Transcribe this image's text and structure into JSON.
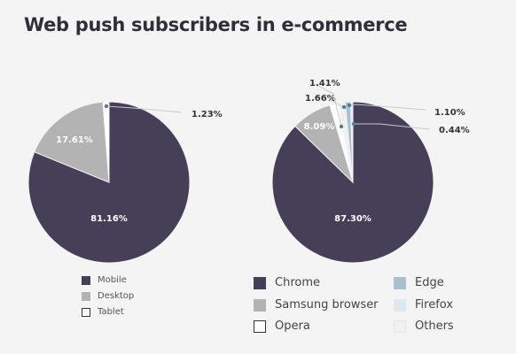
{
  "title": "Web push subscribers in e-commerce",
  "chart_data": [
    {
      "type": "pie",
      "slices": [
        {
          "name": "Mobile",
          "value": 81.16,
          "label": "81.16%",
          "color": "#453f57",
          "label_color": "#ffffff"
        },
        {
          "name": "Desktop",
          "value": 17.61,
          "label": "17.61%",
          "color": "#b3b3b3",
          "label_color": "#ffffff"
        },
        {
          "name": "Tablet",
          "value": 1.23,
          "label": "1.23%",
          "color": "#ffffff",
          "label_color": "#333333"
        }
      ],
      "legend": [
        "Mobile",
        "Desktop",
        "Tablet"
      ]
    },
    {
      "type": "pie",
      "slices": [
        {
          "name": "Chrome",
          "value": 87.3,
          "label": "87.30%",
          "color": "#453f57",
          "label_color": "#ffffff"
        },
        {
          "name": "Samsung browser",
          "value": 8.09,
          "label": "8.09%",
          "color": "#b3b3b3",
          "label_color": "#ffffff"
        },
        {
          "name": "Opera",
          "value": 1.66,
          "label": "1.66%",
          "color": "#ffffff",
          "label_color": "#333333"
        },
        {
          "name": "Others",
          "value": 1.41,
          "label": "1.41%",
          "color": "#f1f1f1",
          "label_color": "#333333"
        },
        {
          "name": "Edge",
          "value": 1.1,
          "label": "1.10%",
          "color": "#a9c0d1",
          "label_color": "#333333"
        },
        {
          "name": "Firefox",
          "value": 0.44,
          "label": "0.44%",
          "color": "#dfe8ee",
          "label_color": "#333333"
        }
      ],
      "legend": [
        "Chrome",
        "Edge",
        "Samsung browser",
        "Firefox",
        "Opera",
        "Others"
      ]
    }
  ]
}
